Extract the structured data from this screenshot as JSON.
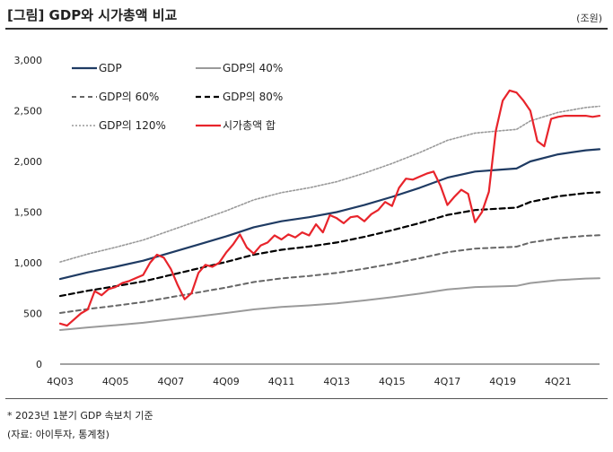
{
  "title": "[그림] GDP와 시가총액 비교",
  "unit": "(조원)",
  "footnote": "* 2023년 1분기 GDP 속보치 기준",
  "source": "(자료: 아이투자, 통계청)",
  "chart_data": {
    "type": "line",
    "title": "GDP와 시가총액 비교",
    "ylabel": "조원",
    "xlabel": "",
    "ylim": [
      0,
      3000
    ],
    "yticks": [
      0,
      500,
      1000,
      1500,
      2000,
      2500,
      3000
    ],
    "ytick_labels": [
      "0",
      "500",
      "1,000",
      "1,500",
      "2,000",
      "2,500",
      "3,000"
    ],
    "xlim": [
      2003.75,
      2023.25
    ],
    "xtick_labels": [
      "4Q03",
      "4Q05",
      "4Q07",
      "4Q09",
      "4Q11",
      "4Q13",
      "4Q15",
      "4Q17",
      "4Q19",
      "4Q21"
    ],
    "xticks": [
      2003.75,
      2005.75,
      2007.75,
      2009.75,
      2011.75,
      2013.75,
      2015.75,
      2017.75,
      2019.75,
      2021.75
    ],
    "grid": false,
    "legend_position": "top-left",
    "gdp_points": {
      "x": [
        2003.75,
        2004.75,
        2005.75,
        2006.75,
        2007.75,
        2008.75,
        2009.75,
        2010.75,
        2011.75,
        2012.75,
        2013.75,
        2014.75,
        2015.75,
        2016.75,
        2017.75,
        2018.75,
        2019.75,
        2020.25,
        2020.75,
        2021.75,
        2022.75,
        2023.25
      ],
      "y": [
        840,
        905,
        960,
        1020,
        1100,
        1180,
        1260,
        1350,
        1410,
        1450,
        1500,
        1570,
        1650,
        1740,
        1840,
        1900,
        1920,
        1930,
        2000,
        2070,
        2110,
        2120
      ]
    },
    "series": [
      {
        "name": "GDP",
        "color": "#1f3b63",
        "dash": "",
        "width": 2.2,
        "scale": 1.0
      },
      {
        "name": "GDP의 40%",
        "color": "#9a9a9a",
        "dash": "",
        "width": 2,
        "scale": 0.4
      },
      {
        "name": "GDP의 60%",
        "color": "#666666",
        "dash": "5,4",
        "width": 2,
        "scale": 0.6
      },
      {
        "name": "GDP의 80%",
        "color": "#000000",
        "dash": "6,4",
        "width": 2.2,
        "scale": 0.8
      },
      {
        "name": "GDP의 120%",
        "color": "#999999",
        "dash": "2,2",
        "width": 1.6,
        "scale": 1.2
      },
      {
        "name": "시가총액 합",
        "color": "#e8242b",
        "dash": "",
        "width": 2.2,
        "x": [
          2003.75,
          2004.0,
          2004.25,
          2004.5,
          2004.75,
          2005.0,
          2005.25,
          2005.5,
          2005.75,
          2006.0,
          2006.25,
          2006.5,
          2006.75,
          2007.0,
          2007.25,
          2007.5,
          2007.75,
          2008.0,
          2008.25,
          2008.5,
          2008.75,
          2009.0,
          2009.25,
          2009.5,
          2009.75,
          2010.0,
          2010.25,
          2010.5,
          2010.75,
          2011.0,
          2011.25,
          2011.5,
          2011.75,
          2012.0,
          2012.25,
          2012.5,
          2012.75,
          2013.0,
          2013.25,
          2013.5,
          2013.75,
          2014.0,
          2014.25,
          2014.5,
          2014.75,
          2015.0,
          2015.25,
          2015.5,
          2015.75,
          2016.0,
          2016.25,
          2016.5,
          2016.75,
          2017.0,
          2017.25,
          2017.5,
          2017.75,
          2018.0,
          2018.25,
          2018.5,
          2018.75,
          2019.0,
          2019.25,
          2019.5,
          2019.75,
          2020.0,
          2020.25,
          2020.5,
          2020.75,
          2021.0,
          2021.25,
          2021.5,
          2021.75,
          2022.0,
          2022.25,
          2022.5,
          2022.75,
          2023.0,
          2023.25
        ],
        "y": [
          400,
          380,
          440,
          500,
          540,
          720,
          680,
          740,
          760,
          800,
          820,
          850,
          880,
          1000,
          1080,
          1050,
          940,
          780,
          640,
          700,
          900,
          980,
          960,
          1000,
          1100,
          1180,
          1280,
          1150,
          1090,
          1170,
          1200,
          1270,
          1230,
          1280,
          1250,
          1300,
          1270,
          1380,
          1300,
          1470,
          1440,
          1390,
          1450,
          1460,
          1410,
          1480,
          1520,
          1600,
          1560,
          1740,
          1830,
          1820,
          1850,
          1880,
          1900,
          1760,
          1570,
          1650,
          1720,
          1680,
          1400,
          1500,
          1700,
          2300,
          2600,
          2700,
          2680,
          2600,
          2500,
          2200,
          2150,
          2420,
          2440,
          2450,
          2450,
          2450,
          2450,
          2440,
          2450
        ]
      }
    ]
  }
}
